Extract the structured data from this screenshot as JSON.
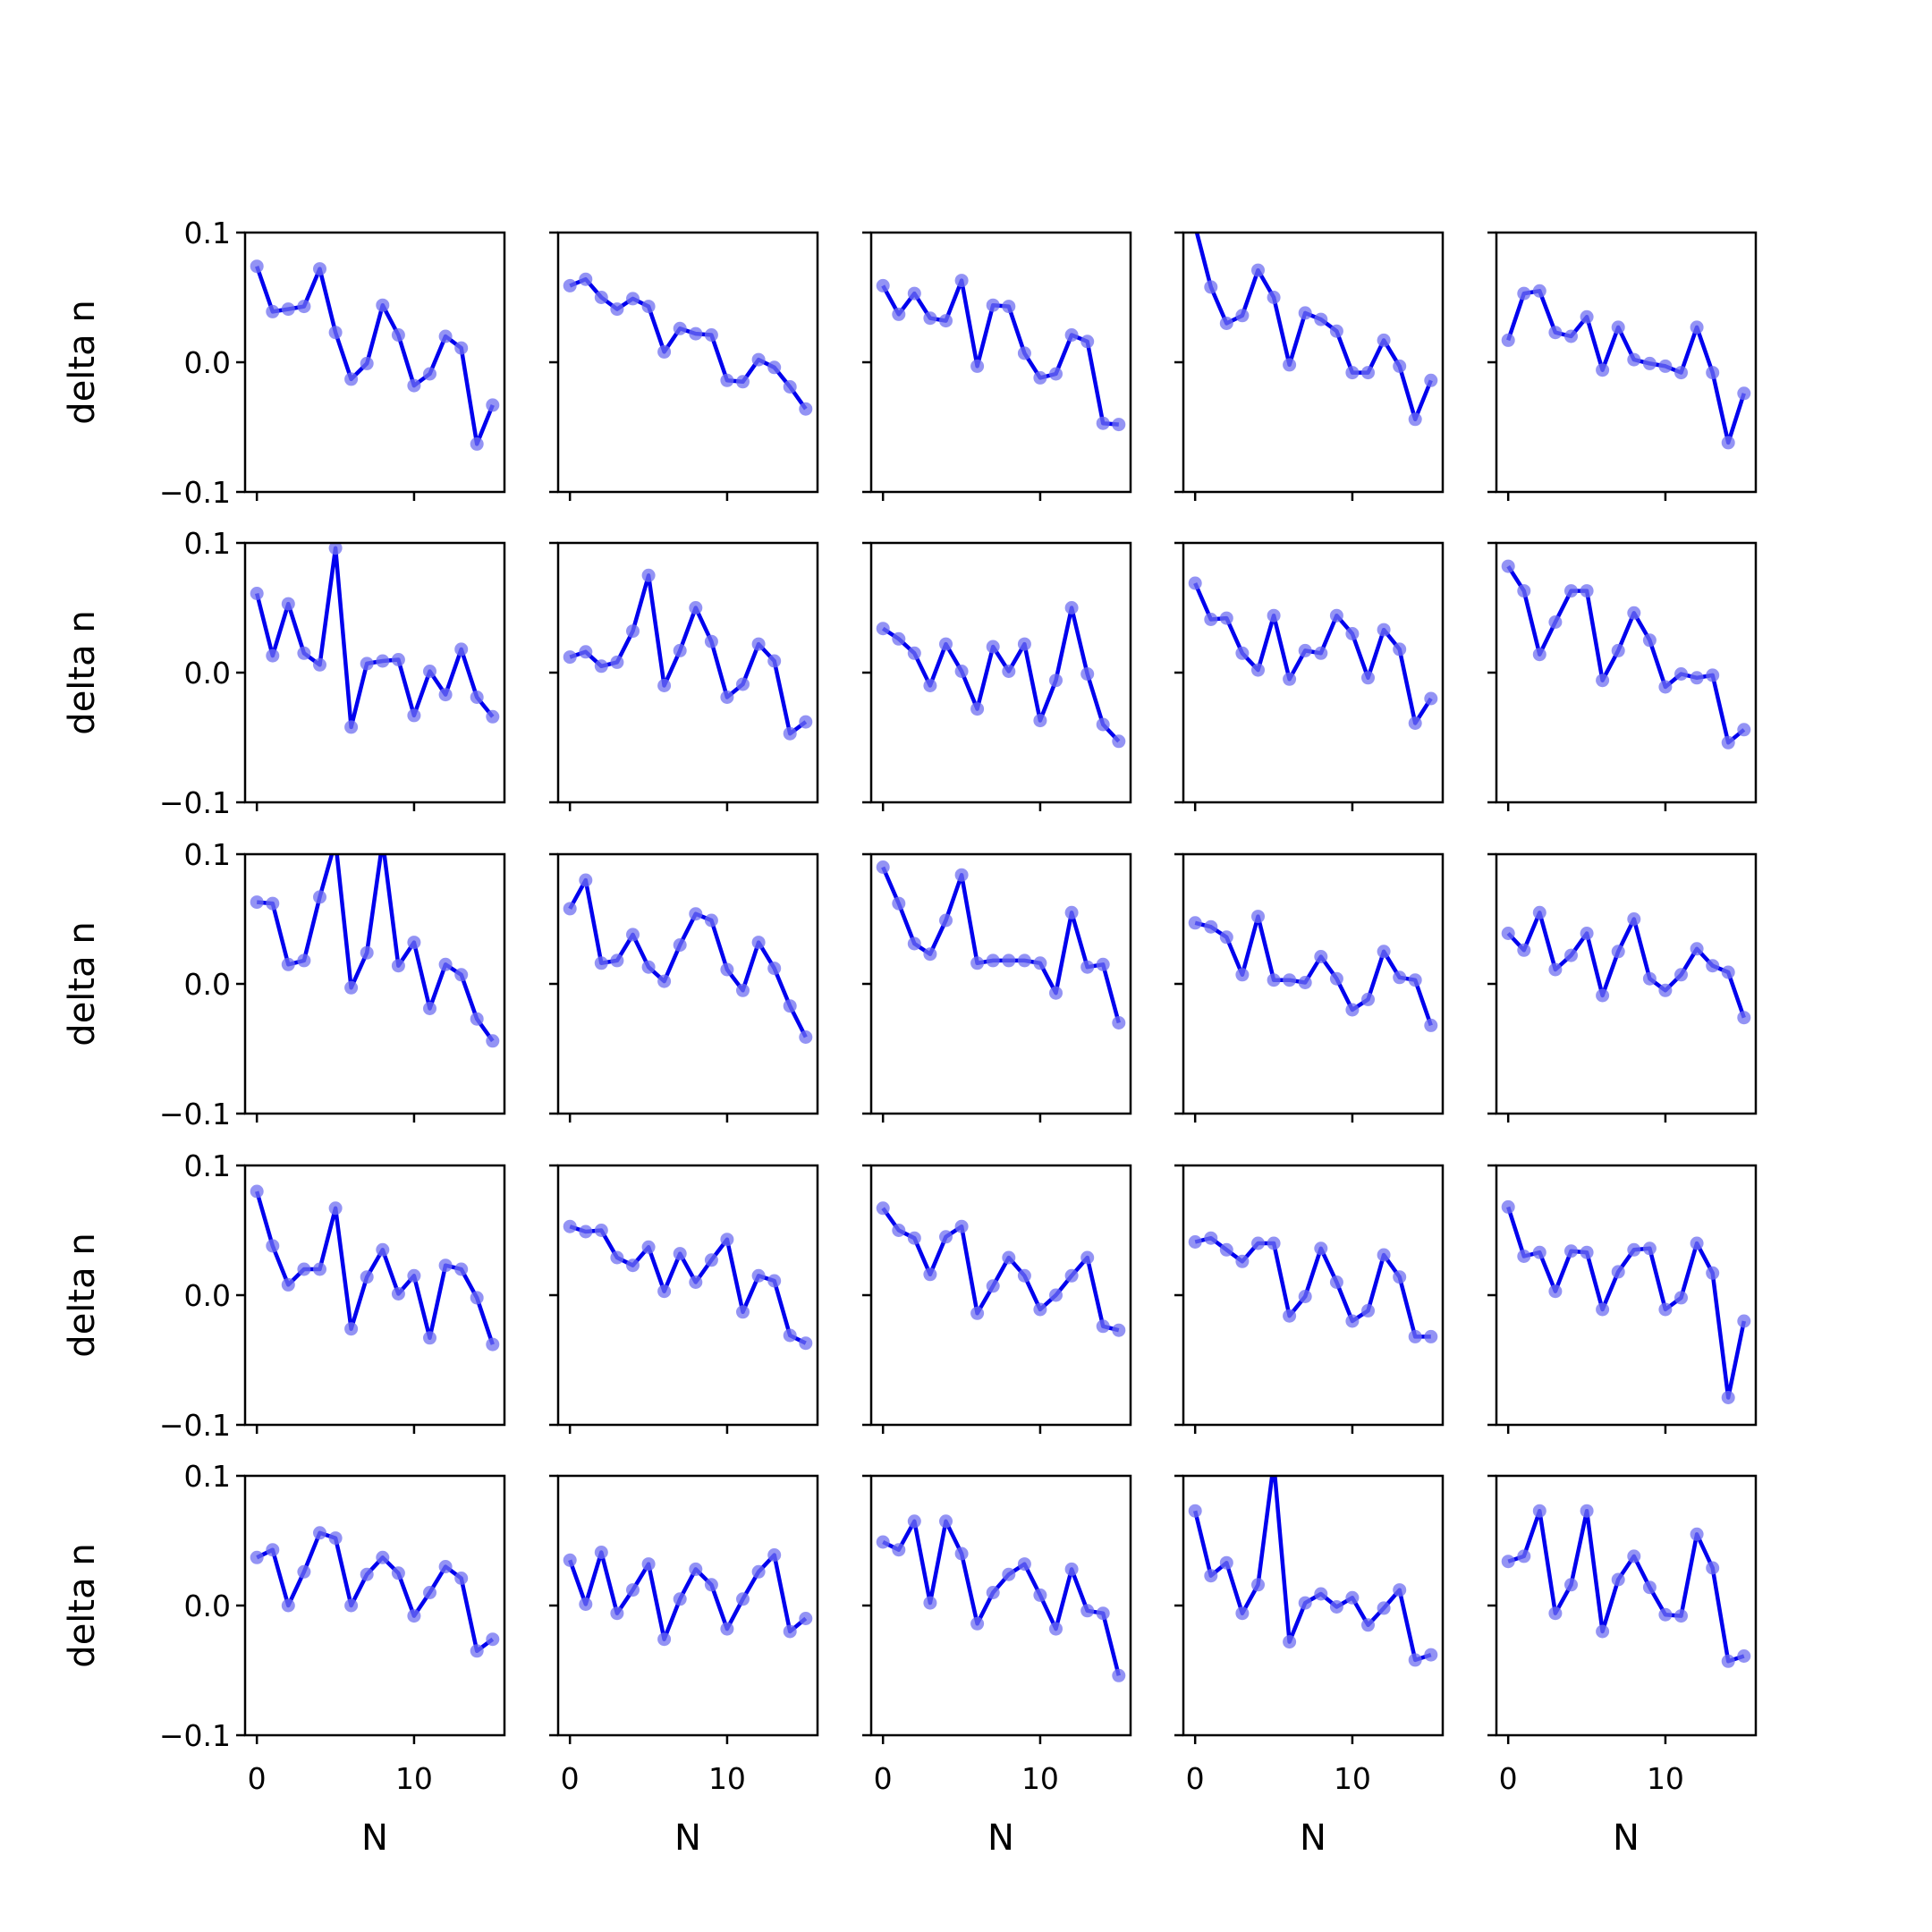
{
  "figure": {
    "ylabel": "delta n",
    "xlabel": "N",
    "line_color": "#0000ee",
    "marker_color": "#6f6ff0"
  },
  "chart_data": {
    "type": "line",
    "layout": "5x5 small multiples",
    "xlabel": "N",
    "ylabel": "delta n",
    "ylim": [
      -0.1,
      0.1
    ],
    "xlim": [
      -0.75,
      15.75
    ],
    "yticks": [
      "0.1",
      "0.0",
      "−0.1"
    ],
    "xticks": [
      "0",
      "10"
    ],
    "x": [
      0,
      1,
      2,
      3,
      4,
      5,
      6,
      7,
      8,
      9,
      10,
      11,
      12,
      13,
      14,
      15
    ],
    "grid": false,
    "panels": [
      [
        0.074,
        0.039,
        0.041,
        0.043,
        0.072,
        0.023,
        -0.013,
        -0.001,
        0.044,
        0.021,
        -0.018,
        -0.009,
        0.02,
        0.011,
        -0.063,
        -0.033
      ],
      [
        0.059,
        0.064,
        0.05,
        0.041,
        0.049,
        0.043,
        0.008,
        0.026,
        0.022,
        0.021,
        -0.014,
        -0.015,
        0.002,
        -0.004,
        -0.019,
        -0.036
      ],
      [
        0.059,
        0.037,
        0.053,
        0.034,
        0.032,
        0.063,
        -0.003,
        0.044,
        0.043,
        0.007,
        -0.012,
        -0.009,
        0.021,
        0.016,
        -0.047,
        -0.048
      ],
      [
        0.105,
        0.058,
        0.03,
        0.036,
        0.071,
        0.05,
        -0.002,
        0.038,
        0.033,
        0.024,
        -0.008,
        -0.008,
        0.017,
        -0.003,
        -0.044,
        -0.014
      ],
      [
        0.017,
        0.053,
        0.055,
        0.023,
        0.02,
        0.035,
        -0.006,
        0.027,
        0.002,
        -0.001,
        -0.003,
        -0.008,
        0.027,
        -0.008,
        -0.062,
        -0.024
      ],
      [
        0.061,
        0.013,
        0.053,
        0.015,
        0.006,
        0.096,
        -0.042,
        0.007,
        0.009,
        0.01,
        -0.033,
        0.001,
        -0.017,
        0.018,
        -0.019,
        -0.034
      ],
      [
        0.012,
        0.016,
        0.005,
        0.008,
        0.032,
        0.075,
        -0.01,
        0.017,
        0.05,
        0.024,
        -0.019,
        -0.009,
        0.022,
        0.009,
        -0.047,
        -0.038
      ],
      [
        0.034,
        0.026,
        0.015,
        -0.01,
        0.022,
        0.001,
        -0.028,
        0.02,
        0.001,
        0.022,
        -0.037,
        -0.006,
        0.05,
        -0.001,
        -0.04,
        -0.053
      ],
      [
        0.069,
        0.041,
        0.042,
        0.015,
        0.002,
        0.044,
        -0.005,
        0.017,
        0.015,
        0.044,
        0.03,
        -0.004,
        0.033,
        0.018,
        -0.039,
        -0.02
      ],
      [
        0.082,
        0.063,
        0.014,
        0.039,
        0.063,
        0.063,
        -0.006,
        0.017,
        0.046,
        0.025,
        -0.011,
        -0.001,
        -0.004,
        -0.002,
        -0.054,
        -0.044
      ],
      [
        0.063,
        0.062,
        0.015,
        0.018,
        0.067,
        0.11,
        -0.003,
        0.024,
        0.11,
        0.014,
        0.032,
        -0.019,
        0.015,
        0.007,
        -0.027,
        -0.044
      ],
      [
        0.058,
        0.08,
        0.016,
        0.018,
        0.038,
        0.013,
        0.002,
        0.03,
        0.054,
        0.049,
        0.011,
        -0.005,
        0.032,
        0.012,
        -0.017,
        -0.041
      ],
      [
        0.09,
        0.062,
        0.031,
        0.023,
        0.049,
        0.084,
        0.016,
        0.018,
        0.018,
        0.018,
        0.016,
        -0.007,
        0.055,
        0.013,
        0.015,
        -0.03
      ],
      [
        0.047,
        0.044,
        0.036,
        0.007,
        0.052,
        0.003,
        0.003,
        0.001,
        0.021,
        0.004,
        -0.02,
        -0.012,
        0.025,
        0.005,
        0.003,
        -0.032
      ],
      [
        0.039,
        0.026,
        0.055,
        0.011,
        0.022,
        0.039,
        -0.009,
        0.025,
        0.05,
        0.004,
        -0.005,
        0.007,
        0.027,
        0.014,
        0.009,
        -0.026
      ],
      [
        0.08,
        0.038,
        0.008,
        0.02,
        0.02,
        0.067,
        -0.026,
        0.014,
        0.035,
        0.001,
        0.015,
        -0.033,
        0.023,
        0.02,
        -0.002,
        -0.038
      ],
      [
        0.053,
        0.049,
        0.05,
        0.029,
        0.023,
        0.037,
        0.003,
        0.032,
        0.01,
        0.027,
        0.043,
        -0.013,
        0.015,
        0.011,
        -0.031,
        -0.037
      ],
      [
        0.067,
        0.05,
        0.044,
        0.016,
        0.045,
        0.053,
        -0.014,
        0.007,
        0.029,
        0.015,
        -0.011,
        0.0,
        0.015,
        0.029,
        -0.024,
        -0.027
      ],
      [
        0.041,
        0.044,
        0.035,
        0.026,
        0.04,
        0.04,
        -0.016,
        -0.001,
        0.036,
        0.01,
        -0.02,
        -0.012,
        0.031,
        0.014,
        -0.032,
        -0.032
      ],
      [
        0.068,
        0.03,
        0.033,
        0.003,
        0.034,
        0.033,
        -0.011,
        0.018,
        0.035,
        0.036,
        -0.011,
        -0.002,
        0.04,
        0.017,
        -0.079,
        -0.02
      ],
      [
        0.037,
        0.043,
        0.0,
        0.026,
        0.056,
        0.052,
        0.0,
        0.024,
        0.037,
        0.025,
        -0.008,
        0.01,
        0.03,
        0.021,
        -0.035,
        -0.026
      ],
      [
        0.035,
        0.001,
        0.041,
        -0.006,
        0.012,
        0.032,
        -0.026,
        0.005,
        0.028,
        0.016,
        -0.018,
        0.005,
        0.026,
        0.039,
        -0.02,
        -0.01
      ],
      [
        0.049,
        0.043,
        0.065,
        0.002,
        0.065,
        0.04,
        -0.014,
        0.01,
        0.024,
        0.032,
        0.008,
        -0.018,
        0.028,
        -0.004,
        -0.006,
        -0.054
      ],
      [
        0.073,
        0.023,
        0.033,
        -0.006,
        0.016,
        0.11,
        -0.028,
        0.002,
        0.009,
        -0.001,
        0.006,
        -0.015,
        -0.002,
        0.012,
        -0.042,
        -0.038
      ],
      [
        0.034,
        0.038,
        0.073,
        -0.006,
        0.016,
        0.073,
        -0.02,
        0.02,
        0.038,
        0.014,
        -0.007,
        -0.008,
        0.055,
        0.029,
        -0.043,
        -0.039
      ]
    ]
  }
}
